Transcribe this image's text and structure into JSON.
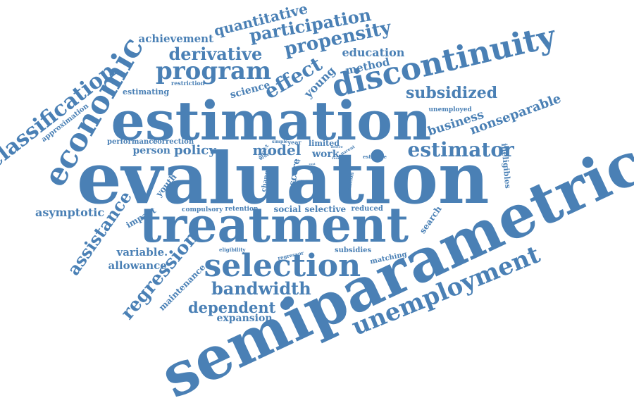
{
  "colors": {
    "word": "#4a80b5",
    "background": "#ffffff"
  },
  "words": [
    "semiparametric",
    "evaluation",
    "estimation",
    "treatment",
    "selection",
    "discontinuity",
    "economic",
    "classification",
    "unemployment",
    "program",
    "regression",
    "assistance",
    "bandwidth",
    "estimator",
    "effect",
    "derivative",
    "propensity",
    "participation",
    "quantitative",
    "dependent",
    "subsidized",
    "achievement",
    "education",
    "policy",
    "model",
    "nonseparable",
    "business",
    "young",
    "method",
    "science",
    "asymptotic",
    "variable.",
    "allowance",
    "expansion",
    "maintenance",
    "youth",
    "impact",
    "person",
    "performance",
    "correction",
    "estimating",
    "restriction",
    "approximation",
    "unemployed",
    "compulsory",
    "retention",
    "social",
    "selective",
    "reduced",
    "subsidies",
    "matching",
    "eligibility",
    "regressor",
    "search",
    "ineligibles",
    "score",
    "change",
    "work",
    "limited",
    "year",
    "simple",
    "direct",
    "order",
    "derive",
    "parent",
    "result",
    "estimate",
    "tuition",
    "form",
    "cost",
    "state",
    "plot",
    "use"
  ]
}
